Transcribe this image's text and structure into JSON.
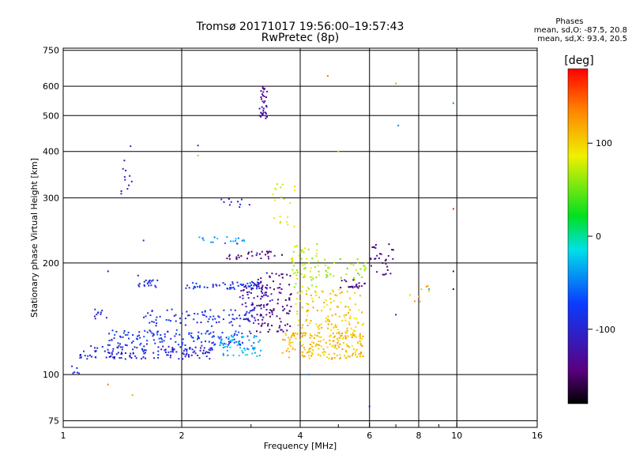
{
  "header": {
    "title_line1": "Tromsø 20171017 19:56:00–19:57:43",
    "title_line2": "RwPretec (8p)",
    "stats_heading": "Phases",
    "stats_line1": "mean, sd,O: -87.5, 20.8",
    "stats_line2": "mean, sd,X:  93.4, 20.5"
  },
  "colorbar": {
    "label": "[deg]",
    "ticks": [
      {
        "value": 100,
        "label": "100"
      },
      {
        "value": 0,
        "label": "0"
      },
      {
        "value": -100,
        "label": "-100"
      }
    ],
    "range": [
      -180,
      180
    ]
  },
  "chart_data": {
    "type": "scatter",
    "xlabel": "Frequency [MHz]",
    "ylabel": "Stationary phase Virtual Height [km]",
    "xscale": "log",
    "yscale": "log",
    "xlim": [
      1,
      16
    ],
    "ylim": [
      72,
      760
    ],
    "grid": true,
    "xticks": [
      {
        "value": 1,
        "label": "1"
      },
      {
        "value": 2,
        "label": "2"
      },
      {
        "value": 4,
        "label": "4"
      },
      {
        "value": 6,
        "label": "6"
      },
      {
        "value": 8,
        "label": "8"
      },
      {
        "value": 10,
        "label": "10"
      },
      {
        "value": 16,
        "label": "16"
      }
    ],
    "x_minor": [
      3,
      5,
      7,
      9
    ],
    "yticks": [
      {
        "value": 75,
        "label": "75"
      },
      {
        "value": 100,
        "label": "100"
      },
      {
        "value": 200,
        "label": "200"
      },
      {
        "value": 300,
        "label": "300"
      },
      {
        "value": 400,
        "label": "400"
      },
      {
        "value": 500,
        "label": "500"
      },
      {
        "value": 600,
        "label": "600"
      },
      {
        "value": 750,
        "label": "750"
      }
    ],
    "color_quantity": "phase [deg]",
    "clusters": [
      {
        "x0": 1.1,
        "x1": 2.4,
        "y0": 110,
        "y1": 120,
        "c": -100,
        "n": 150
      },
      {
        "x0": 1.3,
        "x1": 3.0,
        "y0": 120,
        "y1": 132,
        "c": -80,
        "n": 130
      },
      {
        "x0": 1.6,
        "x1": 3.1,
        "y0": 135,
        "y1": 150,
        "c": -90,
        "n": 80
      },
      {
        "x0": 2.5,
        "x1": 3.2,
        "y0": 112,
        "y1": 128,
        "c": -30,
        "n": 60
      },
      {
        "x0": 2.8,
        "x1": 3.4,
        "y0": 140,
        "y1": 175,
        "c": -120,
        "n": 70
      },
      {
        "x0": 3.1,
        "x1": 3.8,
        "y0": 130,
        "y1": 190,
        "c": -140,
        "n": 90
      },
      {
        "x0": 1.2,
        "x1": 1.3,
        "y0": 140,
        "y1": 150,
        "c": -100,
        "n": 10
      },
      {
        "x0": 1.55,
        "x1": 1.75,
        "y0": 172,
        "y1": 180,
        "c": -90,
        "n": 20
      },
      {
        "x0": 2.05,
        "x1": 3.3,
        "y0": 170,
        "y1": 178,
        "c": -80,
        "n": 60
      },
      {
        "x0": 2.2,
        "x1": 3.0,
        "y0": 225,
        "y1": 235,
        "c": -40,
        "n": 20
      },
      {
        "x0": 2.6,
        "x1": 3.6,
        "y0": 205,
        "y1": 215,
        "c": -140,
        "n": 30
      },
      {
        "x0": 3.4,
        "x1": 3.9,
        "y0": 250,
        "y1": 330,
        "c": 80,
        "n": 20
      },
      {
        "x0": 3.6,
        "x1": 5.8,
        "y0": 110,
        "y1": 130,
        "c": 110,
        "n": 200
      },
      {
        "x0": 3.9,
        "x1": 5.8,
        "y0": 130,
        "y1": 170,
        "c": 105,
        "n": 120
      },
      {
        "x0": 3.8,
        "x1": 4.5,
        "y0": 170,
        "y1": 225,
        "c": 70,
        "n": 60
      },
      {
        "x0": 4.5,
        "x1": 5.9,
        "y0": 180,
        "y1": 205,
        "c": 60,
        "n": 35
      },
      {
        "x0": 5.0,
        "x1": 5.9,
        "y0": 170,
        "y1": 180,
        "c": -140,
        "n": 20
      },
      {
        "x0": 6.0,
        "x1": 6.9,
        "y0": 185,
        "y1": 225,
        "c": -140,
        "n": 30
      },
      {
        "x0": 3.15,
        "x1": 3.3,
        "y0": 490,
        "y1": 600,
        "c": -130,
        "n": 35
      },
      {
        "x0": 1.4,
        "x1": 1.5,
        "y0": 300,
        "y1": 420,
        "c": -110,
        "n": 12
      },
      {
        "x0": 2.5,
        "x1": 3.0,
        "y0": 280,
        "y1": 300,
        "c": -100,
        "n": 10
      },
      {
        "x0": 7.3,
        "x1": 8.8,
        "y0": 150,
        "y1": 185,
        "c": 120,
        "n": 8
      },
      {
        "x0": 1.05,
        "x1": 1.1,
        "y0": 100,
        "y1": 106,
        "c": -80,
        "n": 6
      }
    ],
    "points": [
      {
        "x": 4.7,
        "y": 640,
        "c": 140
      },
      {
        "x": 7.0,
        "y": 610,
        "c": 120
      },
      {
        "x": 9.8,
        "y": 540,
        "c": -40
      },
      {
        "x": 7.1,
        "y": 470,
        "c": -40
      },
      {
        "x": 5.0,
        "y": 400,
        "c": 100
      },
      {
        "x": 2.2,
        "y": 415,
        "c": -100
      },
      {
        "x": 2.2,
        "y": 390,
        "c": 60
      },
      {
        "x": 9.8,
        "y": 280,
        "c": 170
      },
      {
        "x": 9.8,
        "y": 190,
        "c": -140
      },
      {
        "x": 9.8,
        "y": 170,
        "c": -140
      },
      {
        "x": 6.0,
        "y": 82,
        "c": -110
      },
      {
        "x": 4.2,
        "y": 100,
        "c": -50
      },
      {
        "x": 1.3,
        "y": 94,
        "c": 140
      },
      {
        "x": 1.5,
        "y": 88,
        "c": 120
      },
      {
        "x": 1.6,
        "y": 230,
        "c": -100
      },
      {
        "x": 1.3,
        "y": 190,
        "c": -120
      },
      {
        "x": 1.55,
        "y": 185,
        "c": -110
      },
      {
        "x": 7.0,
        "y": 145,
        "c": -110
      },
      {
        "x": 8.5,
        "y": 170,
        "c": -30
      }
    ]
  }
}
